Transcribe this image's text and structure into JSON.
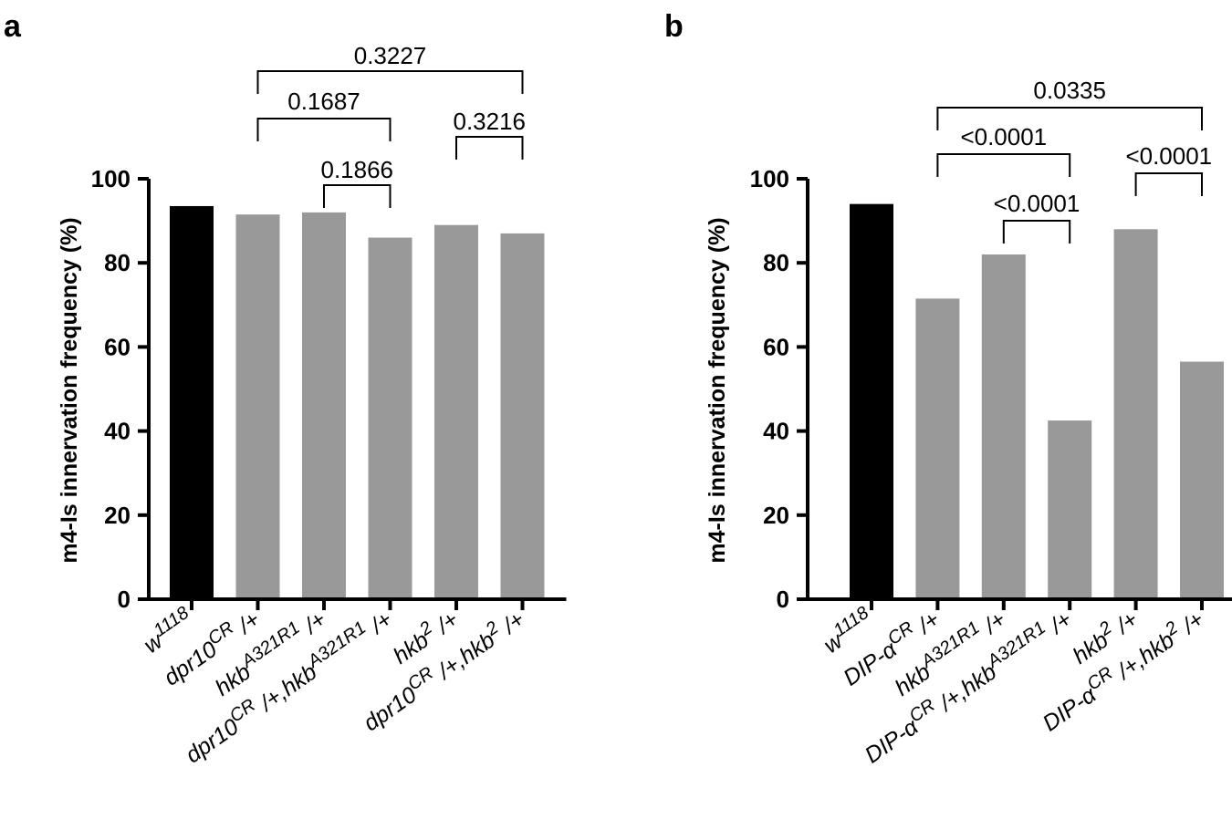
{
  "colors": {
    "control": "#000000",
    "mutant": "#999999",
    "axis": "#000000"
  },
  "chart_data": [
    {
      "type": "bar",
      "panel": "a",
      "ylabel": "m4-Is innervation frequency (%)",
      "ylim": [
        0,
        100
      ],
      "yticks": [
        "0",
        "20",
        "40",
        "60",
        "80",
        "100"
      ],
      "categories": [
        {
          "base": "w",
          "sup": "1118",
          "after": ""
        },
        {
          "base": "dpr10",
          "sup": "CR",
          "after": " /+"
        },
        {
          "base": "hkb",
          "sup": "A321R1",
          "after": " /+"
        },
        {
          "base": "dpr10",
          "sup": "CR",
          "after": " /+,hkb",
          "sup2": "A321R1",
          "after2": " /+"
        },
        {
          "base": "hkb",
          "sup": "2",
          "after": " /+"
        },
        {
          "base": "dpr10",
          "sup": "CR",
          "after": " /+,hkb",
          "sup2": "2",
          "after2": " /+"
        }
      ],
      "values": [
        93.5,
        91.5,
        92,
        86,
        89,
        87
      ],
      "bar_colors": [
        "#000000",
        "#999999",
        "#999999",
        "#999999",
        "#999999",
        "#999999"
      ],
      "comparisons": [
        {
          "from": 1,
          "to": 5,
          "label": "0.3227"
        },
        {
          "from": 1,
          "to": 3,
          "label": "0.1687"
        },
        {
          "from": 4,
          "to": 5,
          "label": "0.3216"
        },
        {
          "from": 2,
          "to": 3,
          "label": "0.1866"
        }
      ]
    },
    {
      "type": "bar",
      "panel": "b",
      "ylabel": "m4-Is innervation frequency (%)",
      "ylim": [
        0,
        100
      ],
      "yticks": [
        "0",
        "20",
        "40",
        "60",
        "80",
        "100"
      ],
      "categories": [
        {
          "base": "w",
          "sup": "1118",
          "after": ""
        },
        {
          "base": "DIP-α",
          "sup": "CR",
          "after": " /+"
        },
        {
          "base": "hkb",
          "sup": "A321R1",
          "after": " /+"
        },
        {
          "base": "DIP-α",
          "sup": "CR",
          "after": " /+,hkb",
          "sup2": "A321R1",
          "after2": " /+"
        },
        {
          "base": "hkb",
          "sup": "2",
          "after": " /+"
        },
        {
          "base": "DIP-α",
          "sup": "CR",
          "after": " /+,hkb",
          "sup2": "2",
          "after2": " /+"
        }
      ],
      "values": [
        94,
        71.5,
        82,
        42.5,
        88,
        56.5
      ],
      "bar_colors": [
        "#000000",
        "#999999",
        "#999999",
        "#999999",
        "#999999",
        "#999999"
      ],
      "comparisons": [
        {
          "from": 1,
          "to": 5,
          "label": "0.0335"
        },
        {
          "from": 1,
          "to": 3,
          "label": "<0.0001"
        },
        {
          "from": 4,
          "to": 5,
          "label": "<0.0001"
        },
        {
          "from": 2,
          "to": 3,
          "label": "<0.0001"
        }
      ]
    }
  ]
}
